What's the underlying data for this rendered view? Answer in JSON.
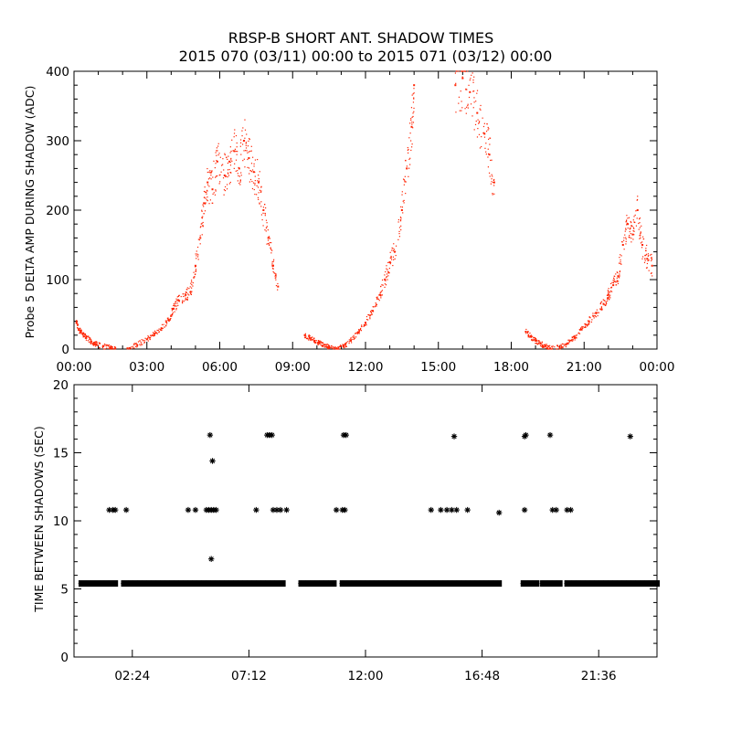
{
  "chart_data": [
    {
      "type": "scatter",
      "title": "RBSP-B SHORT ANT. SHADOW TIMES",
      "subtitle": "2015 070 (03/11) 00:00 to 2015 071 (03/12) 00:00",
      "xlabel": "",
      "ylabel": "Probe 5 DELTA AMP DURING SHADOW (ADC)",
      "xlim": [
        0,
        24
      ],
      "ylim": [
        0,
        400
      ],
      "x_unit": "hours",
      "x_ticks": [
        "00:00",
        "03:00",
        "06:00",
        "09:00",
        "12:00",
        "15:00",
        "18:00",
        "21:00",
        "00:00"
      ],
      "y_ticks": [
        "0",
        "100",
        "200",
        "300",
        "400"
      ],
      "marker_color": "#ff2200",
      "grid": false,
      "series": [
        {
          "points": [
            [
              0.1,
              38
            ],
            [
              0.2,
              28
            ],
            [
              0.35,
              22
            ],
            [
              0.5,
              17
            ],
            [
              0.7,
              11
            ],
            [
              0.9,
              7
            ],
            [
              1.2,
              4
            ],
            [
              1.5,
              2
            ],
            [
              1.7,
              1
            ],
            [
              2.2,
              1
            ],
            [
              2.6,
              6
            ],
            [
              3.0,
              14
            ],
            [
              3.3,
              22
            ],
            [
              3.6,
              30
            ],
            [
              3.9,
              42
            ],
            [
              4.1,
              58
            ],
            [
              4.3,
              70
            ],
            [
              4.6,
              78
            ],
            [
              4.8,
              82
            ],
            [
              5.0,
              120
            ],
            [
              5.2,
              160
            ],
            [
              5.35,
              210
            ],
            [
              5.5,
              240
            ],
            [
              5.7,
              230
            ],
            [
              5.9,
              270
            ],
            [
              6.2,
              250
            ],
            [
              6.4,
              270
            ],
            [
              6.6,
              285
            ],
            [
              6.8,
              260
            ],
            [
              7.0,
              300
            ],
            [
              7.2,
              275
            ],
            [
              7.4,
              255
            ],
            [
              7.6,
              240
            ],
            [
              7.8,
              200
            ],
            [
              8.0,
              160
            ],
            [
              8.2,
              120
            ],
            [
              8.4,
              90
            ],
            [
              9.5,
              20
            ],
            [
              9.7,
              16
            ],
            [
              9.9,
              12
            ],
            [
              10.1,
              9
            ],
            [
              10.3,
              6
            ],
            [
              10.5,
              3
            ],
            [
              10.8,
              1
            ],
            [
              11.1,
              4
            ],
            [
              11.4,
              12
            ],
            [
              11.7,
              24
            ],
            [
              12.0,
              38
            ],
            [
              12.3,
              55
            ],
            [
              12.6,
              78
            ],
            [
              12.8,
              100
            ],
            [
              13.0,
              125
            ],
            [
              13.2,
              140
            ],
            [
              13.5,
              200
            ],
            [
              13.7,
              260
            ],
            [
              13.9,
              320
            ],
            [
              14.0,
              380
            ],
            [
              15.7,
              380
            ],
            [
              16.0,
              390
            ],
            [
              16.3,
              370
            ],
            [
              16.6,
              340
            ],
            [
              16.9,
              310
            ],
            [
              17.1,
              280
            ],
            [
              17.3,
              240
            ],
            [
              18.6,
              25
            ],
            [
              18.8,
              18
            ],
            [
              19.0,
              12
            ],
            [
              19.2,
              8
            ],
            [
              19.4,
              4
            ],
            [
              19.6,
              1
            ],
            [
              20.0,
              2
            ],
            [
              20.3,
              8
            ],
            [
              20.6,
              16
            ],
            [
              20.9,
              28
            ],
            [
              21.2,
              40
            ],
            [
              21.5,
              52
            ],
            [
              21.8,
              65
            ],
            [
              22.0,
              78
            ],
            [
              22.2,
              92
            ],
            [
              22.4,
              105
            ],
            [
              22.6,
              150
            ],
            [
              22.8,
              180
            ],
            [
              23.0,
              165
            ],
            [
              23.2,
              200
            ],
            [
              23.4,
              150
            ],
            [
              23.6,
              130
            ],
            [
              23.8,
              120
            ]
          ]
        }
      ]
    },
    {
      "type": "scatter",
      "title": "",
      "xlabel": "",
      "ylabel": "TIME BETWEEN SHADOWS (SEC)",
      "xlim": [
        0,
        24
      ],
      "ylim": [
        0,
        20
      ],
      "x_unit": "hours",
      "x_ticks": [
        "02:24",
        "07:12",
        "12:00",
        "16:48",
        "21:36"
      ],
      "y_ticks": [
        "0",
        "5",
        "10",
        "15",
        "20"
      ],
      "marker": "asterisk",
      "marker_color": "#000000",
      "grid": false,
      "baseline": {
        "value": 5.4,
        "segments": [
          [
            0.3,
            1.7
          ],
          [
            2.05,
            8.6
          ],
          [
            9.35,
            10.7
          ],
          [
            11.05,
            17.5
          ],
          [
            18.5,
            19.05
          ],
          [
            19.3,
            20.0
          ],
          [
            20.3,
            24.0
          ]
        ]
      },
      "series": [
        {
          "points": [
            [
              1.45,
              10.8
            ],
            [
              1.6,
              10.8
            ],
            [
              1.7,
              10.8
            ],
            [
              2.15,
              10.8
            ],
            [
              4.7,
              10.8
            ],
            [
              5.0,
              10.8
            ],
            [
              5.45,
              10.8
            ],
            [
              5.55,
              10.8
            ],
            [
              5.65,
              10.8
            ],
            [
              5.75,
              10.8
            ],
            [
              5.85,
              10.8
            ],
            [
              5.6,
              16.3
            ],
            [
              5.7,
              14.4
            ],
            [
              5.65,
              7.2
            ],
            [
              7.5,
              10.8
            ],
            [
              7.95,
              16.3
            ],
            [
              8.05,
              16.3
            ],
            [
              8.15,
              16.3
            ],
            [
              8.2,
              10.8
            ],
            [
              8.35,
              10.8
            ],
            [
              8.5,
              10.8
            ],
            [
              8.75,
              10.8
            ],
            [
              10.8,
              10.8
            ],
            [
              11.05,
              10.8
            ],
            [
              11.15,
              10.8
            ],
            [
              11.1,
              16.3
            ],
            [
              11.2,
              16.3
            ],
            [
              14.7,
              10.8
            ],
            [
              15.1,
              10.8
            ],
            [
              15.35,
              10.8
            ],
            [
              15.55,
              10.8
            ],
            [
              15.75,
              10.8
            ],
            [
              16.2,
              10.8
            ],
            [
              15.65,
              16.2
            ],
            [
              17.5,
              10.6
            ],
            [
              18.55,
              10.8
            ],
            [
              18.55,
              16.2
            ],
            [
              18.6,
              16.3
            ],
            [
              19.6,
              16.3
            ],
            [
              19.7,
              10.8
            ],
            [
              19.85,
              10.8
            ],
            [
              20.3,
              10.8
            ],
            [
              20.45,
              10.8
            ],
            [
              22.9,
              16.2
            ]
          ]
        }
      ]
    }
  ]
}
